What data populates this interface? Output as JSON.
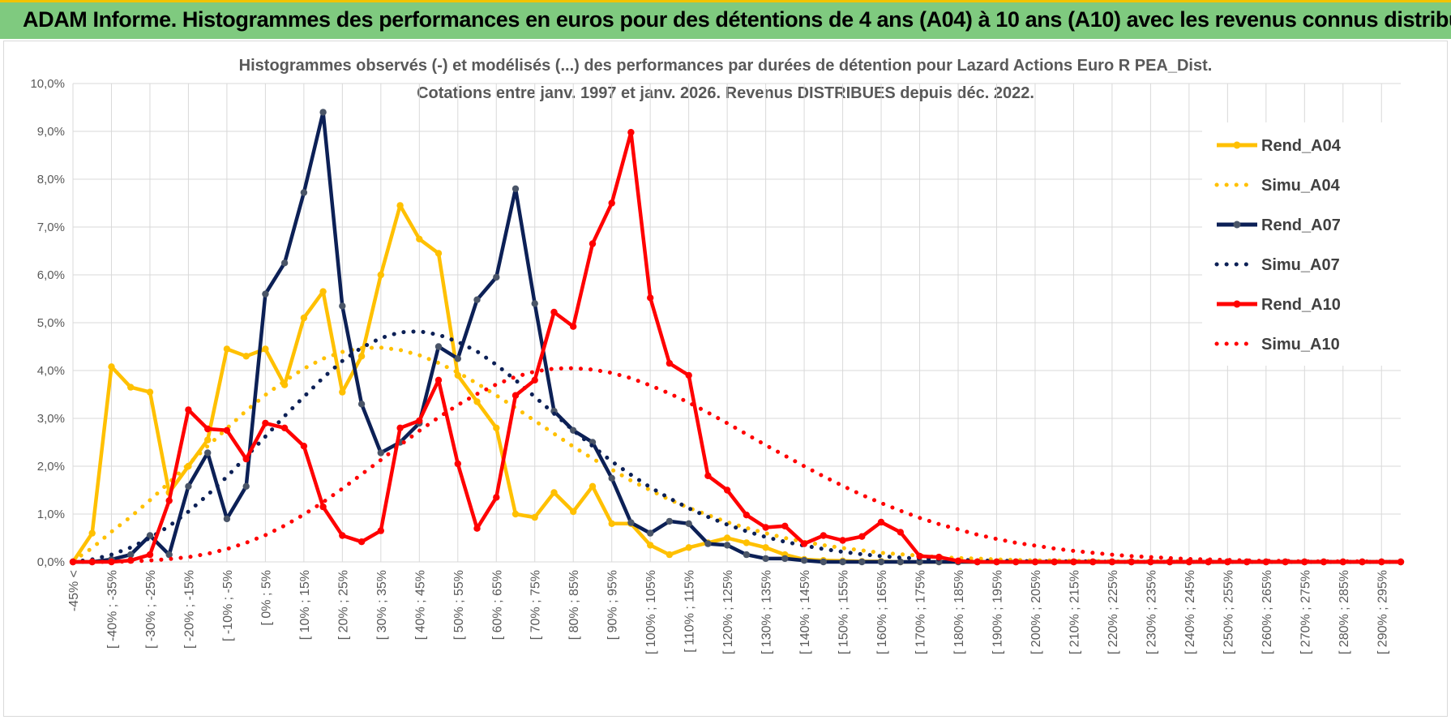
{
  "banner": {
    "title": "ADAM Informe. Histogrammes des performances en euros pour des détentions de 4 ans (A04) à 10 ans (A10) avec les revenus connus distribués"
  },
  "colors": {
    "banner_bg": "#7fca7f",
    "a04": "#ffc000",
    "a07": "#0c2056",
    "a10": "#ff0000",
    "grid": "#d9d9d9"
  },
  "chart_data": {
    "type": "line",
    "title": "Histogrammes observés (-) et modélisés (...) des performances par durées de détention pour Lazard Actions Euro R PEA_Dist.",
    "subtitle": "Cotations entre janv. 1997 et janv. 2026. Revenus DISTRIBUES depuis déc. 2022.",
    "xlabel": "",
    "ylabel": "",
    "ylim": [
      0,
      10
    ],
    "yticks": [
      "0,0%",
      "1,0%",
      "2,0%",
      "3,0%",
      "4,0%",
      "5,0%",
      "6,0%",
      "7,0%",
      "8,0%",
      "9,0%",
      "10,0%"
    ],
    "x_tick_labels": [
      "-45% <",
      "[ -40% ; -35%",
      "[ -30% ; -25%",
      "[ -20% ; -15%",
      "[ -10% ; -5%",
      "[ 0% ; 5%",
      "[ 10% ; 15%",
      "[ 20% ; 25%",
      "[ 30% ; 35%",
      "[ 40% ; 45%",
      "[ 50% ; 55%",
      "[ 60% ; 65%",
      "[ 70% ; 75%",
      "[ 80% ; 85%",
      "[ 90% ; 95%",
      "[ 100% ; 105%",
      "[ 110% ; 115%",
      "[ 120% ; 125%",
      "[ 130% ; 135%",
      "[ 140% ; 145%",
      "[ 150% ; 155%",
      "[ 160% ; 165%",
      "[ 170% ; 175%",
      "[ 180% ; 185%",
      "[ 190% ; 195%",
      "[ 200% ; 205%",
      "[ 210% ; 215%",
      "[ 220% ; 225%",
      "[ 230% ; 235%",
      "[ 240% ; 245%",
      "[ 250% ; 255%",
      "[ 260% ; 265%",
      "[ 270% ; 275%",
      "[ 280% ; 285%",
      "[ 290% ; 295%"
    ],
    "series": [
      {
        "name": "Rend_A04",
        "style": "solid",
        "color": "#ffc000",
        "values": [
          0.0,
          0.6,
          4.08,
          3.65,
          3.55,
          1.45,
          2.0,
          2.55,
          4.45,
          4.3,
          4.45,
          3.7,
          5.1,
          5.65,
          3.55,
          4.3,
          6.0,
          7.45,
          6.75,
          6.45,
          3.9,
          3.35,
          2.8,
          1.0,
          0.93,
          1.45,
          1.05,
          1.58,
          0.8,
          0.8,
          0.35,
          0.15,
          0.3,
          0.4,
          0.5,
          0.4,
          0.3,
          0.15,
          0.05,
          0.03,
          0.02,
          0.01,
          0.01,
          0.0,
          0.0,
          0.0,
          0.0,
          0.0,
          0.0,
          0.0,
          0.0,
          0.0,
          0.0,
          0.0,
          0.0,
          0.0,
          0.0,
          0.0,
          0.0,
          0.0,
          0.0,
          0.0,
          0.0,
          0.0,
          0.0,
          0.0,
          0.0,
          0.0,
          0.0,
          0.0
        ]
      },
      {
        "name": "Simu_A04",
        "style": "dotted",
        "color": "#ffc000",
        "values": [
          0.02,
          0.29,
          0.63,
          0.94,
          1.29,
          1.66,
          2.04,
          2.42,
          2.79,
          3.16,
          3.49,
          3.78,
          4.04,
          4.25,
          4.39,
          4.47,
          4.48,
          4.43,
          4.32,
          4.16,
          3.96,
          3.73,
          3.48,
          3.22,
          2.95,
          2.68,
          2.41,
          2.16,
          1.93,
          1.7,
          1.5,
          1.3,
          1.13,
          0.98,
          0.83,
          0.71,
          0.6,
          0.5,
          0.42,
          0.35,
          0.29,
          0.24,
          0.19,
          0.16,
          0.13,
          0.1,
          0.08,
          0.07,
          0.05,
          0.04,
          0.03,
          0.03,
          0.02,
          0.02,
          0.01,
          0.01,
          0.01,
          0.01,
          0.01,
          0.0,
          0.0,
          0.0,
          0.0,
          0.0,
          0.0,
          0.0,
          0.0,
          0.0,
          0.0,
          0.0
        ]
      },
      {
        "name": "Rend_A07",
        "style": "solid",
        "color": "#0c2056",
        "values": [
          0.0,
          0.0,
          0.05,
          0.15,
          0.55,
          0.15,
          1.58,
          2.28,
          0.9,
          1.58,
          5.6,
          6.25,
          7.72,
          9.4,
          5.35,
          3.3,
          2.28,
          2.5,
          2.9,
          4.5,
          4.25,
          5.48,
          5.95,
          7.8,
          5.4,
          3.15,
          2.75,
          2.5,
          1.75,
          0.82,
          0.6,
          0.85,
          0.8,
          0.38,
          0.35,
          0.15,
          0.07,
          0.07,
          0.03,
          0.0,
          0.0,
          0.0,
          0.0,
          0.0,
          0.0,
          0.0,
          0.0,
          0.0,
          0.0,
          0.0,
          0.0,
          0.0,
          0.0,
          0.0,
          0.0,
          0.0,
          0.0,
          0.0,
          0.0,
          0.0,
          0.0,
          0.0,
          0.0,
          0.0,
          0.0,
          0.0,
          0.0,
          0.0,
          0.0,
          0.0
        ]
      },
      {
        "name": "Simu_A07",
        "style": "dotted",
        "color": "#0c2056",
        "values": [
          0.0,
          0.05,
          0.15,
          0.3,
          0.5,
          0.75,
          1.05,
          1.4,
          1.78,
          2.2,
          2.62,
          3.05,
          3.45,
          3.85,
          4.2,
          4.48,
          4.68,
          4.8,
          4.82,
          4.75,
          4.6,
          4.4,
          4.12,
          3.8,
          3.45,
          3.1,
          2.75,
          2.42,
          2.1,
          1.82,
          1.56,
          1.33,
          1.12,
          0.94,
          0.78,
          0.64,
          0.52,
          0.42,
          0.34,
          0.27,
          0.21,
          0.16,
          0.12,
          0.09,
          0.07,
          0.05,
          0.04,
          0.03,
          0.02,
          0.02,
          0.01,
          0.01,
          0.01,
          0.01,
          0.0,
          0.0,
          0.0,
          0.0,
          0.0,
          0.0,
          0.0,
          0.0,
          0.0,
          0.0,
          0.0,
          0.0,
          0.0,
          0.0,
          0.0,
          0.0
        ]
      },
      {
        "name": "Rend_A10",
        "style": "solid",
        "color": "#ff0000",
        "values": [
          0.0,
          0.0,
          0.0,
          0.03,
          0.15,
          1.28,
          3.18,
          2.78,
          2.75,
          2.15,
          2.9,
          2.8,
          2.42,
          1.15,
          0.55,
          0.42,
          0.65,
          2.8,
          2.95,
          3.8,
          2.05,
          0.7,
          1.35,
          3.48,
          3.8,
          5.22,
          4.92,
          6.65,
          7.5,
          8.98,
          5.52,
          4.15,
          3.9,
          1.8,
          1.5,
          0.98,
          0.72,
          0.75,
          0.38,
          0.55,
          0.45,
          0.53,
          0.83,
          0.62,
          0.12,
          0.1,
          0.02,
          0.0,
          0.0,
          0.0,
          0.0,
          0.0,
          0.0,
          0.0,
          0.0,
          0.0,
          0.0,
          0.0,
          0.0,
          0.0,
          0.0,
          0.0,
          0.0,
          0.0,
          0.0,
          0.0,
          0.0,
          0.0,
          0.0,
          0.0
        ]
      },
      {
        "name": "Simu_A10",
        "style": "dotted",
        "color": "#ff0000",
        "values": [
          0.0,
          0.0,
          0.0,
          0.01,
          0.03,
          0.06,
          0.1,
          0.17,
          0.27,
          0.4,
          0.56,
          0.76,
          0.99,
          1.25,
          1.53,
          1.83,
          2.13,
          2.44,
          2.74,
          3.02,
          3.28,
          3.51,
          3.71,
          3.87,
          3.98,
          4.04,
          4.05,
          4.02,
          3.95,
          3.84,
          3.69,
          3.52,
          3.33,
          3.12,
          2.9,
          2.67,
          2.44,
          2.22,
          2.0,
          1.79,
          1.59,
          1.4,
          1.23,
          1.07,
          0.92,
          0.79,
          0.68,
          0.57,
          0.48,
          0.4,
          0.34,
          0.28,
          0.23,
          0.19,
          0.15,
          0.12,
          0.1,
          0.08,
          0.06,
          0.05,
          0.04,
          0.03,
          0.02,
          0.02,
          0.01,
          0.01,
          0.01,
          0.01,
          0.0,
          0.0
        ]
      }
    ],
    "legend_position": "right"
  }
}
